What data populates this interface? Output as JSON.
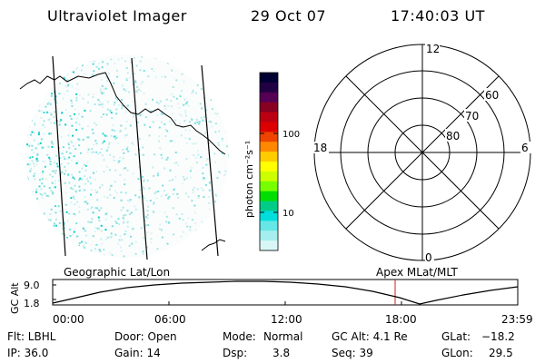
{
  "header": {
    "title": "Ultraviolet Imager",
    "date": "29 Oct 07",
    "time": "17:40:03 UT"
  },
  "colorbar": {
    "label": "photon cm⁻²s⁻¹",
    "ticks": [
      "100",
      "10"
    ],
    "colors": [
      "#000033",
      "#220044",
      "#550055",
      "#880022",
      "#bb0011",
      "#dd0000",
      "#ee4400",
      "#ff8800",
      "#ffcc00",
      "#ffff00",
      "#ccff00",
      "#77ff00",
      "#00dd00",
      "#00cc88",
      "#00dddd",
      "#66e6e6",
      "#a6eeee",
      "#d8f6f6"
    ]
  },
  "polar": {
    "labels": {
      "top": "12",
      "bottom": "0",
      "left": "18",
      "right": "6"
    },
    "rings": [
      "60",
      "70",
      "80"
    ]
  },
  "timeline": {
    "left_label": "Geographic Lat/Lon",
    "right_label": "Apex MLat/MLT",
    "axis_label": "GC Alt",
    "y_ticks": [
      "9.0",
      "1.8"
    ],
    "x_ticks": [
      "00:00",
      "06:00",
      "12:00",
      "18:00",
      "23:59"
    ],
    "marker_time": "17:40"
  },
  "info": {
    "row1": {
      "flt": "Flt: LBHL",
      "door": "Door: Open",
      "mode_label": "Mode:",
      "mode_value": "Normal",
      "alt": "GC Alt: 4.1 Re",
      "glat_label": "GLat:",
      "glat_value": "−18.2"
    },
    "row2": {
      "ip": "IP: 36.0",
      "gain": "Gain: 14",
      "dsp_label": "Dsp:",
      "dsp_value": "3.8",
      "seq": "Seq: 39",
      "glon_label": "GLon:",
      "glon_value": "29.5"
    }
  }
}
